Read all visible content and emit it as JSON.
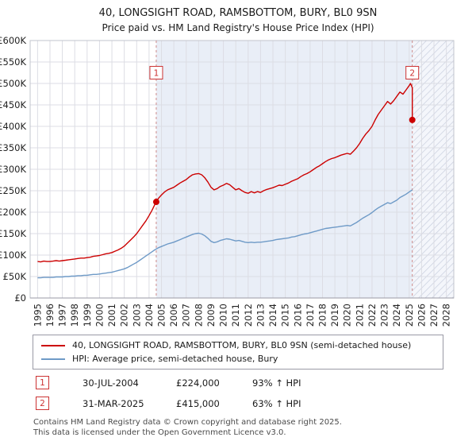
{
  "title": "40, LONGSIGHT ROAD, RAMSBOTTOM, BURY, BL0 9SN",
  "subtitle": "Price paid vs. HM Land Registry's House Price Index (HPI)",
  "chart_data": {
    "type": "line",
    "xlim": [
      1994.4,
      2028.6
    ],
    "ylim": [
      0,
      600000
    ],
    "y_tick_step": 50000,
    "y_tick_labels": [
      "£0",
      "£50K",
      "£100K",
      "£150K",
      "£200K",
      "£250K",
      "£300K",
      "£350K",
      "£400K",
      "£450K",
      "£500K",
      "£550K",
      "£600K"
    ],
    "x_ticks": [
      1995,
      1996,
      1997,
      1998,
      1999,
      2000,
      2001,
      2002,
      2003,
      2004,
      2005,
      2006,
      2007,
      2008,
      2009,
      2010,
      2011,
      2012,
      2013,
      2014,
      2015,
      2016,
      2017,
      2018,
      2019,
      2020,
      2021,
      2022,
      2023,
      2024,
      2025,
      2026,
      2027,
      2028
    ],
    "values_unit": "GBP_thousands",
    "grid": true,
    "shaded_region": {
      "from": 2004.58,
      "to": 2025.25
    },
    "hatched_region": {
      "from": 2025.25,
      "to": 2028.6
    },
    "shaded_color": "#e9eef7",
    "marker_color": "#cc0000",
    "marker_box_value": 525000,
    "series": [
      {
        "name": "40, LONGSIGHT ROAD, RAMSBOTTOM, BURY, BL0 9SN (semi-detached house)",
        "color": "#cc0000",
        "x_start": 1995,
        "x_step": 0.25,
        "values": [
          85,
          84,
          86,
          85,
          85,
          86,
          87,
          86,
          87,
          88,
          89,
          90,
          91,
          92,
          93,
          93,
          94,
          95,
          97,
          98,
          99,
          101,
          103,
          104,
          106,
          109,
          112,
          116,
          121,
          128,
          135,
          142,
          150,
          160,
          170,
          180,
          192,
          205,
          220,
          232,
          240,
          247,
          252,
          255,
          258,
          263,
          268,
          272,
          276,
          282,
          287,
          289,
          290,
          287,
          280,
          270,
          258,
          252,
          255,
          260,
          263,
          267,
          264,
          258,
          252,
          255,
          250,
          246,
          244,
          248,
          245,
          248,
          246,
          250,
          253,
          255,
          257,
          260,
          263,
          262,
          265,
          268,
          272,
          275,
          278,
          283,
          287,
          290,
          294,
          299,
          304,
          308,
          313,
          318,
          322,
          325,
          327,
          330,
          333,
          335,
          337,
          335,
          342,
          350,
          360,
          372,
          382,
          390,
          400,
          415,
          428,
          438,
          448,
          458,
          452,
          460,
          470,
          480,
          475,
          485,
          495
        ],
        "tail": [
          [
            2025.1,
            500
          ],
          [
            2025.25,
            490
          ],
          [
            2025.25,
            415
          ]
        ]
      },
      {
        "name": "HPI: Average price, semi-detached house, Bury",
        "color": "#6e9ac7",
        "x_start": 1995,
        "x_step": 0.25,
        "values": [
          47,
          47,
          48,
          48,
          48,
          48,
          49,
          49,
          49,
          50,
          50,
          51,
          51,
          52,
          52,
          53,
          53,
          54,
          55,
          55,
          56,
          57,
          58,
          59,
          60,
          62,
          64,
          66,
          68,
          71,
          75,
          79,
          83,
          88,
          93,
          98,
          103,
          108,
          113,
          117,
          120,
          123,
          126,
          128,
          130,
          133,
          136,
          139,
          142,
          145,
          148,
          150,
          151,
          149,
          145,
          139,
          132,
          129,
          131,
          134,
          136,
          138,
          137,
          135,
          133,
          134,
          132,
          130,
          129,
          130,
          129,
          130,
          130,
          131,
          132,
          133,
          134,
          136,
          137,
          138,
          139,
          140,
          142,
          143,
          145,
          147,
          149,
          150,
          152,
          154,
          156,
          158,
          160,
          162,
          163,
          164,
          165,
          166,
          167,
          168,
          169,
          168,
          172,
          176,
          181,
          186,
          190,
          194,
          199,
          205,
          210,
          214,
          218,
          222,
          220,
          224,
          228,
          234,
          238,
          242,
          247,
          252
        ],
        "tail": []
      }
    ],
    "markers": [
      {
        "label": "1",
        "x": 2004.58,
        "y": 224000
      },
      {
        "label": "2",
        "x": 2025.25,
        "y": 415000
      }
    ]
  },
  "legend": {
    "items": [
      {
        "label": "40, LONGSIGHT ROAD, RAMSBOTTOM, BURY, BL0 9SN (semi-detached house)",
        "color": "#cc0000"
      },
      {
        "label": "HPI: Average price, semi-detached house, Bury",
        "color": "#6e9ac7"
      }
    ]
  },
  "annotations": [
    {
      "num": "1",
      "date": "30-JUL-2004",
      "price": "£224,000",
      "hpi": "93% ↑ HPI"
    },
    {
      "num": "2",
      "date": "31-MAR-2025",
      "price": "£415,000",
      "hpi": "63% ↑ HPI"
    }
  ],
  "footer": {
    "line1": "Contains HM Land Registry data © Crown copyright and database right 2025.",
    "line2": "This data is licensed under the Open Government Licence v3.0."
  }
}
